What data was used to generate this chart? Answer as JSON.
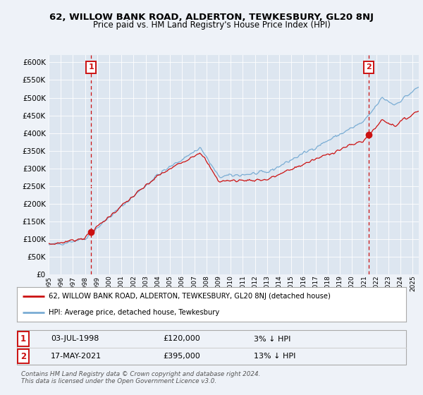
{
  "title": "62, WILLOW BANK ROAD, ALDERTON, TEWKESBURY, GL20 8NJ",
  "subtitle": "Price paid vs. HM Land Registry's House Price Index (HPI)",
  "background_color": "#eef2f8",
  "plot_bg": "#dde6f0",
  "legend_line1": "62, WILLOW BANK ROAD, ALDERTON, TEWKESBURY, GL20 8NJ (detached house)",
  "legend_line2": "HPI: Average price, detached house, Tewkesbury",
  "sale1_date": "03-JUL-1998",
  "sale1_price": "£120,000",
  "sale1_hpi": "3% ↓ HPI",
  "sale1_year": 1998.5,
  "sale1_value": 120000,
  "sale2_date": "17-MAY-2021",
  "sale2_price": "£395,000",
  "sale2_hpi": "13% ↓ HPI",
  "sale2_year": 2021.38,
  "sale2_value": 395000,
  "footer": "Contains HM Land Registry data © Crown copyright and database right 2024.\nThis data is licensed under the Open Government Licence v3.0.",
  "hpi_color": "#7aadd4",
  "price_color": "#cc1111",
  "vline_color": "#cc1111",
  "ylim": [
    0,
    620000
  ],
  "yticks": [
    0,
    50000,
    100000,
    150000,
    200000,
    250000,
    300000,
    350000,
    400000,
    450000,
    500000,
    550000,
    600000
  ],
  "xlim": [
    1995.0,
    2025.5
  ]
}
